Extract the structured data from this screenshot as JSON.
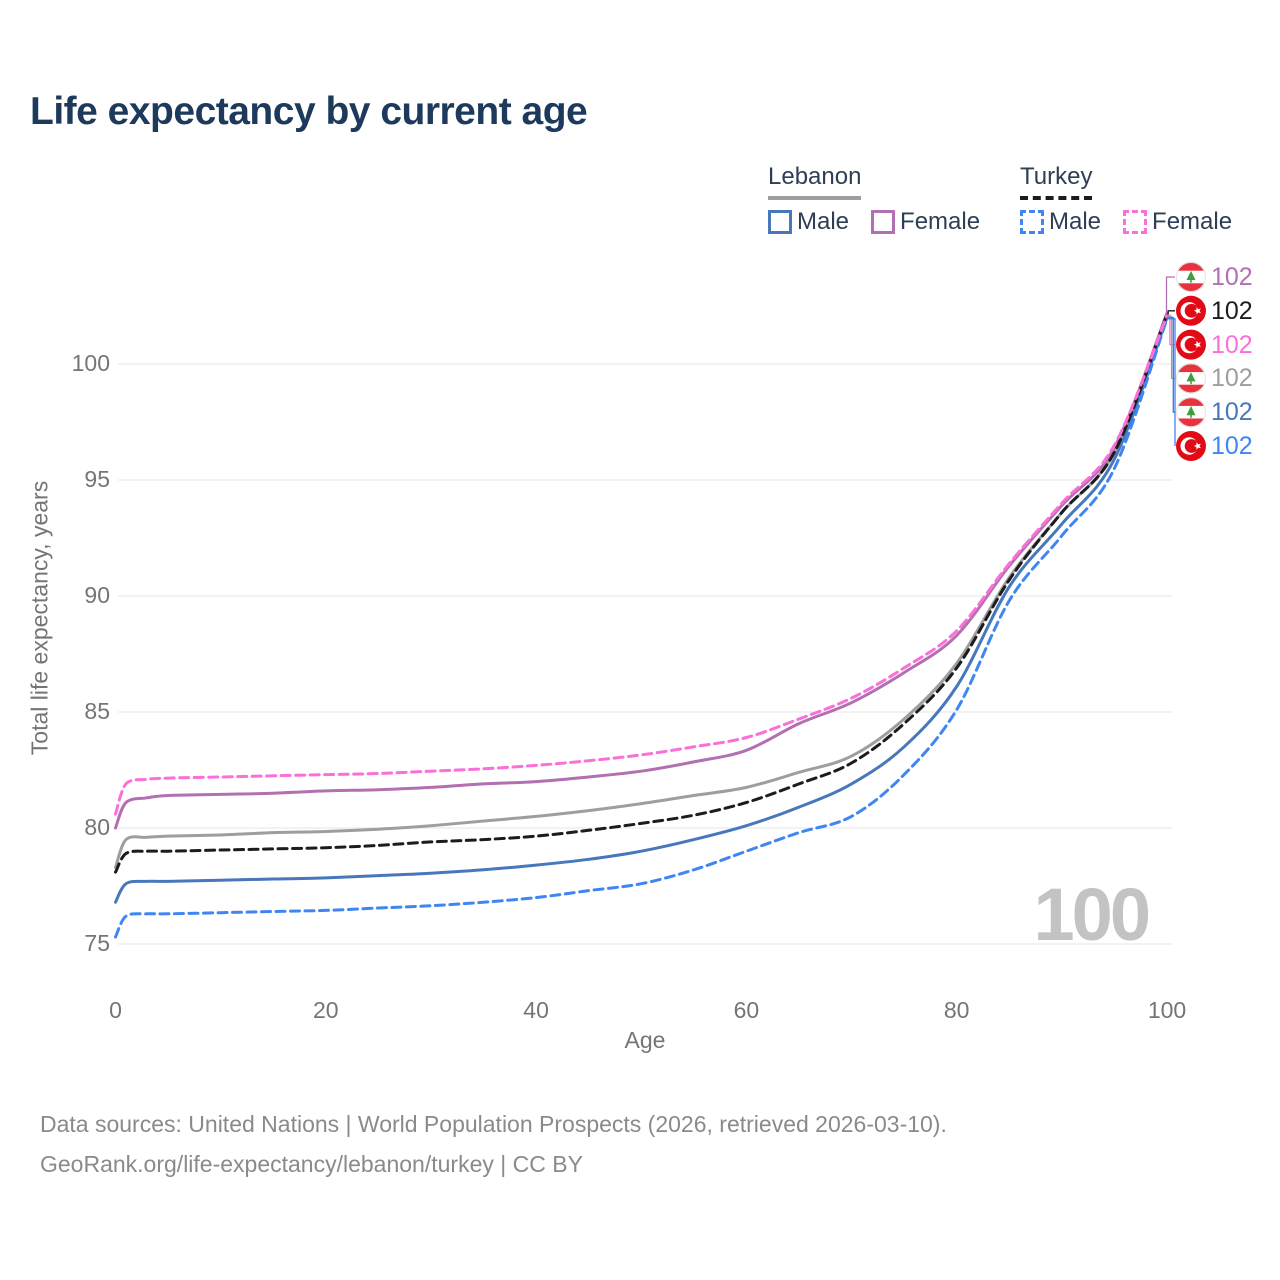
{
  "title": "Life expectancy by current age",
  "watermark_age": "100",
  "colors": {
    "title_text": "#1d3a5c",
    "legend_text": "#2d3e55",
    "axis_text": "#757575",
    "grid": "#e9e9e9",
    "watermark": "#c3c3c3",
    "footer_text": "#8a8a8a",
    "lebanon_male": "#4678bb",
    "lebanon_female": "#b26fb2",
    "lebanon_total": "#9e9e9e",
    "turkey_male": "#3f86f4",
    "turkey_female": "#fb6fd8",
    "turkey_total": "#1c1c1c",
    "flag_red_turkey": "#e30a17",
    "flag_red_lebanon": "#e8323e",
    "flag_cedar_green": "#3f9e3f"
  },
  "legend": {
    "groups": [
      {
        "country": "Lebanon",
        "line_style": "solid",
        "underline_color": "#9e9e9e",
        "items": [
          {
            "label": "Male",
            "color": "#4678bb",
            "dashed": false
          },
          {
            "label": "Female",
            "color": "#b26fb2",
            "dashed": false
          }
        ]
      },
      {
        "country": "Turkey",
        "line_style": "dashed",
        "underline_color": "#1c1c1c",
        "items": [
          {
            "label": "Male",
            "color": "#3f86f4",
            "dashed": true
          },
          {
            "label": "Female",
            "color": "#fb6fd8",
            "dashed": true
          }
        ]
      }
    ]
  },
  "chart_data": {
    "type": "line",
    "title": "Life expectancy by current age",
    "xlabel": "Age",
    "ylabel": "Total life expectancy, years",
    "xlim": [
      0,
      100
    ],
    "ylim": [
      75,
      102.5
    ],
    "x_ticks": [
      0,
      20,
      40,
      60,
      80,
      100
    ],
    "y_ticks": [
      75,
      80,
      85,
      90,
      95,
      100
    ],
    "grid": true,
    "legend_position": "top-right",
    "x": [
      0,
      1,
      3,
      5,
      10,
      15,
      20,
      25,
      30,
      35,
      40,
      45,
      50,
      55,
      60,
      65,
      70,
      75,
      80,
      85,
      90,
      95,
      100
    ],
    "series": [
      {
        "name": "Lebanon",
        "key": "lebanon_total",
        "country": "Lebanon",
        "sex": "both",
        "style": "solid",
        "color": "#9e9e9e",
        "values": [
          78.3,
          79.5,
          79.6,
          79.65,
          79.7,
          79.8,
          79.85,
          79.95,
          80.1,
          80.3,
          80.5,
          80.75,
          81.05,
          81.4,
          81.75,
          82.4,
          83.1,
          84.7,
          87.1,
          90.8,
          93.6,
          96.2,
          102.05
        ]
      },
      {
        "name": "Lebanon Female",
        "key": "lebanon_female",
        "country": "Lebanon",
        "sex": "female",
        "style": "solid",
        "color": "#b26fb2",
        "values": [
          80.0,
          81.1,
          81.3,
          81.4,
          81.45,
          81.5,
          81.6,
          81.65,
          81.75,
          81.9,
          82.0,
          82.2,
          82.45,
          82.85,
          83.35,
          84.5,
          85.4,
          86.7,
          88.3,
          91.3,
          93.9,
          96.4,
          102.2
        ]
      },
      {
        "name": "Lebanon Male",
        "key": "lebanon_male",
        "country": "Lebanon",
        "sex": "male",
        "style": "solid",
        "color": "#4678bb",
        "values": [
          76.8,
          77.6,
          77.7,
          77.7,
          77.75,
          77.8,
          77.85,
          77.95,
          78.05,
          78.2,
          78.4,
          78.65,
          79.0,
          79.5,
          80.1,
          80.9,
          81.9,
          83.5,
          86.1,
          90.4,
          93.1,
          95.9,
          102.0
        ]
      },
      {
        "name": "Turkey",
        "key": "turkey_total",
        "country": "Turkey",
        "sex": "both",
        "style": "dashed",
        "color": "#1c1c1c",
        "values": [
          78.1,
          78.9,
          79.0,
          79.0,
          79.05,
          79.1,
          79.15,
          79.25,
          79.4,
          79.5,
          79.65,
          79.9,
          80.2,
          80.55,
          81.1,
          81.9,
          82.8,
          84.5,
          86.9,
          90.7,
          93.6,
          96.2,
          102.15
        ]
      },
      {
        "name": "Turkey Male",
        "key": "turkey_male",
        "country": "Turkey",
        "sex": "male",
        "style": "dashed",
        "color": "#3f86f4",
        "values": [
          75.3,
          76.2,
          76.3,
          76.3,
          76.35,
          76.4,
          76.45,
          76.55,
          76.65,
          76.8,
          77.0,
          77.3,
          77.6,
          78.2,
          79.0,
          79.8,
          80.5,
          82.3,
          85.1,
          89.8,
          92.6,
          95.5,
          101.95
        ]
      },
      {
        "name": "Turkey Female",
        "key": "turkey_female",
        "country": "Turkey",
        "sex": "female",
        "style": "dashed",
        "color": "#fb6fd8",
        "values": [
          80.6,
          81.9,
          82.1,
          82.15,
          82.2,
          82.25,
          82.3,
          82.35,
          82.45,
          82.55,
          82.7,
          82.9,
          83.15,
          83.5,
          83.9,
          84.7,
          85.6,
          86.9,
          88.5,
          91.4,
          94.0,
          96.5,
          102.1
        ]
      }
    ],
    "end_labels": [
      {
        "series": "lebanon_female",
        "flag": "lebanon",
        "value": "102"
      },
      {
        "series": "turkey_total",
        "flag": "turkey",
        "value": "102"
      },
      {
        "series": "turkey_female",
        "flag": "turkey",
        "value": "102"
      },
      {
        "series": "lebanon_total",
        "flag": "lebanon",
        "value": "102"
      },
      {
        "series": "lebanon_male",
        "flag": "lebanon",
        "value": "102"
      },
      {
        "series": "turkey_male",
        "flag": "turkey",
        "value": "102"
      }
    ]
  },
  "footer": {
    "line1": "Data sources: United Nations | World Population Prospects (2026, retrieved 2026-03-10).",
    "line2": "GeoRank.org/life-expectancy/lebanon/turkey | CC BY"
  }
}
